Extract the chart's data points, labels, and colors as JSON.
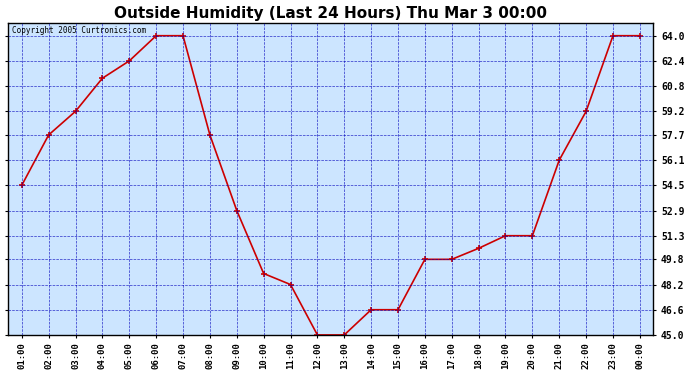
{
  "title": "Outside Humidity (Last 24 Hours) Thu Mar 3 00:00",
  "copyright": "Copyright 2005 Curtronics.com",
  "x_labels": [
    "01:00",
    "02:00",
    "03:00",
    "04:00",
    "05:00",
    "06:00",
    "07:00",
    "08:00",
    "09:00",
    "10:00",
    "11:00",
    "12:00",
    "13:00",
    "14:00",
    "15:00",
    "16:00",
    "17:00",
    "18:00",
    "19:00",
    "20:00",
    "21:00",
    "22:00",
    "23:00",
    "00:00"
  ],
  "y_values": [
    54.5,
    57.7,
    59.2,
    61.3,
    62.4,
    64.0,
    64.0,
    57.7,
    52.9,
    48.9,
    48.2,
    45.0,
    45.0,
    46.6,
    46.6,
    49.8,
    49.8,
    50.5,
    51.3,
    51.3,
    56.1,
    59.2,
    64.0,
    64.0
  ],
  "line_color": "#cc0000",
  "marker_color": "#cc0000",
  "outer_bg_color": "#ffffff",
  "plot_bg_color": "#cce5ff",
  "grid_color": "#0000bb",
  "title_fontsize": 11,
  "ylim": [
    45.0,
    64.8
  ],
  "yticks": [
    45.0,
    46.6,
    48.2,
    49.8,
    51.3,
    52.9,
    54.5,
    56.1,
    57.7,
    59.2,
    60.8,
    62.4,
    64.0
  ]
}
